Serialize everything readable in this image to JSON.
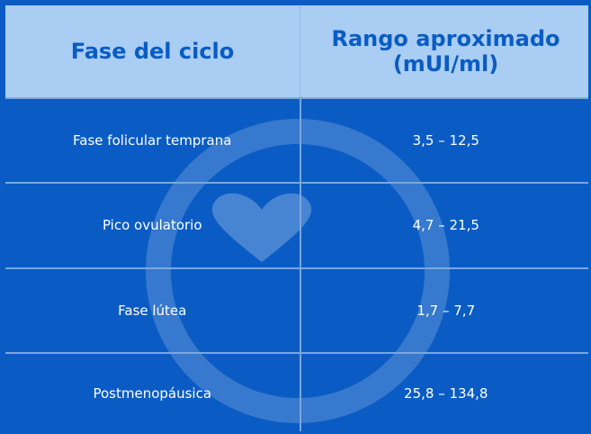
{
  "table": {
    "header": [
      "Fase del ciclo",
      "Rango aproximado (mUI/ml)"
    ],
    "rows": [
      [
        "Fase folicular temprana",
        "3,5 – 12,5"
      ],
      [
        "Pico ovulatorio",
        "4,7 – 21,5"
      ],
      [
        "Fase lútea",
        "1,7 – 7,7"
      ],
      [
        "Postmenopáusica",
        "25,8 – 134,8"
      ]
    ]
  }
}
